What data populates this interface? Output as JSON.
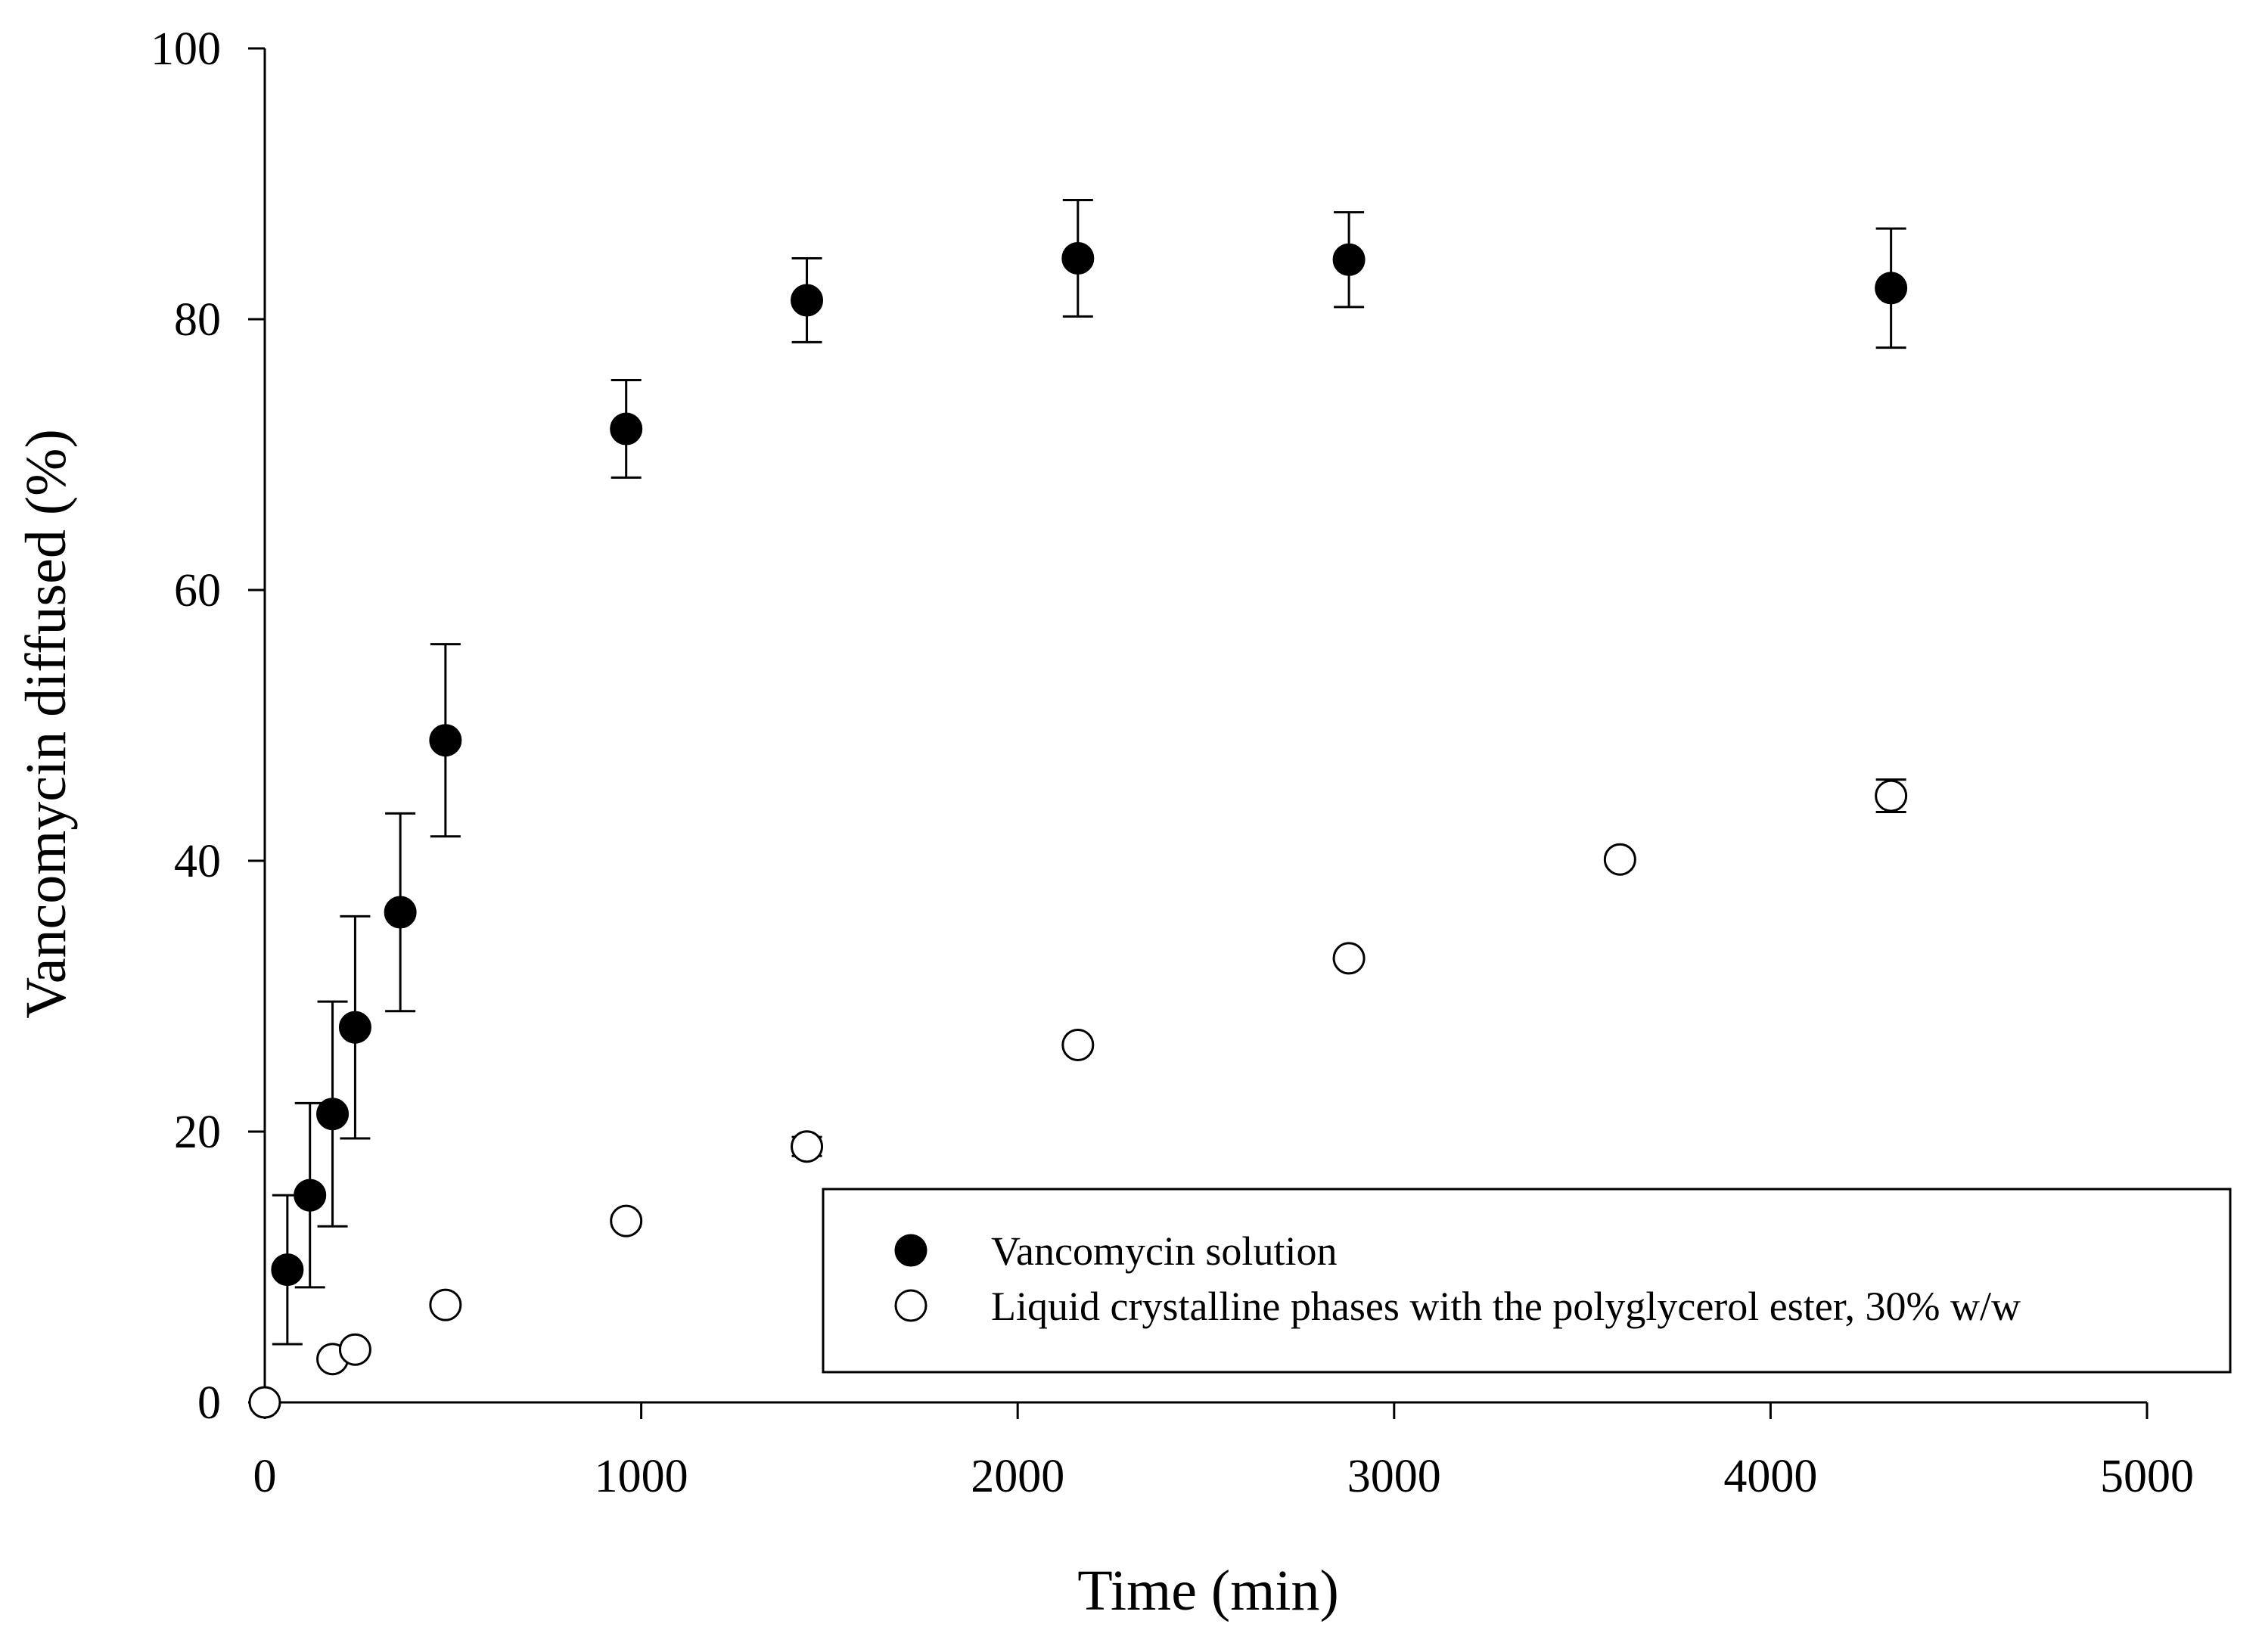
{
  "chart_data": {
    "type": "scatter",
    "xlabel": "Time (min)",
    "ylabel": "Vancomycin diffused (%)",
    "xlim": [
      0,
      5000
    ],
    "ylim": [
      0,
      100
    ],
    "x_ticks": [
      0,
      1000,
      2000,
      3000,
      4000,
      5000
    ],
    "y_ticks": [
      0,
      20,
      40,
      60,
      80,
      100
    ],
    "grid": false,
    "legend_position": "bottom-right",
    "series": [
      {
        "name": "Vancomycin solution",
        "marker": "filled-circle",
        "color": "#000000",
        "points": [
          {
            "x": 60,
            "y": 9.8,
            "err": 5.5
          },
          {
            "x": 120,
            "y": 15.3,
            "err": 6.8
          },
          {
            "x": 180,
            "y": 21.3,
            "err": 8.3
          },
          {
            "x": 240,
            "y": 27.7,
            "err": 8.2
          },
          {
            "x": 360,
            "y": 36.2,
            "err": 7.3
          },
          {
            "x": 480,
            "y": 48.9,
            "err": 7.1
          },
          {
            "x": 960,
            "y": 71.9,
            "err": 3.6
          },
          {
            "x": 1440,
            "y": 81.4,
            "err": 3.1
          },
          {
            "x": 2160,
            "y": 84.5,
            "err": 4.3
          },
          {
            "x": 2880,
            "y": 84.4,
            "err": 3.5
          },
          {
            "x": 4320,
            "y": 82.3,
            "err": 4.4
          }
        ]
      },
      {
        "name": "Liquid crystalline phases with the polyglycerol ester, 30% w/w",
        "marker": "open-circle",
        "color": "#000000",
        "points": [
          {
            "x": 0,
            "y": 0.0,
            "err": 0
          },
          {
            "x": 180,
            "y": 3.2,
            "err": 0.2
          },
          {
            "x": 240,
            "y": 3.9,
            "err": 0.3
          },
          {
            "x": 480,
            "y": 7.2,
            "err": 0.3
          },
          {
            "x": 960,
            "y": 13.4,
            "err": 0.4
          },
          {
            "x": 1440,
            "y": 18.9,
            "err": 0.7
          },
          {
            "x": 2160,
            "y": 26.4,
            "err": 0.2
          },
          {
            "x": 2880,
            "y": 32.8,
            "err": 0.3
          },
          {
            "x": 3600,
            "y": 40.1,
            "err": 0.2
          },
          {
            "x": 4320,
            "y": 44.8,
            "err": 1.2
          }
        ]
      }
    ]
  }
}
